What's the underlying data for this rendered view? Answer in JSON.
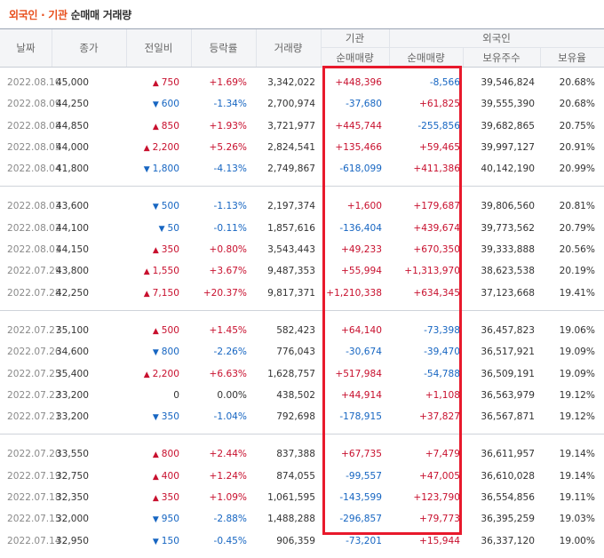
{
  "title": {
    "part1": "외국인 · 기관",
    "part2": "순매매 거래량"
  },
  "headers": {
    "date": "날짜",
    "close": "종가",
    "change": "전일비",
    "rate": "등락률",
    "volume": "거래량",
    "institution": "기관",
    "inst_net": "순매매량",
    "foreign": "외국인",
    "for_net": "순매매량",
    "holdings": "보유주수",
    "hold_rate": "보유율"
  },
  "colors": {
    "up": "#c8102e",
    "down": "#1766c2",
    "highlight_box": "#e8192c",
    "title_accent": "#e8501e"
  },
  "groups": [
    {
      "rows": [
        {
          "date": "2022.08.10",
          "close": "45,000",
          "dir": "up",
          "change": "750",
          "rate": "+1.69%",
          "volume": "3,342,022",
          "inst": "+448,396",
          "foreign": "-8,566",
          "holdings": "39,546,824",
          "hold_rate": "20.68%"
        },
        {
          "date": "2022.08.09",
          "close": "44,250",
          "dir": "down",
          "change": "600",
          "rate": "-1.34%",
          "volume": "2,700,974",
          "inst": "-37,680",
          "foreign": "+61,825",
          "holdings": "39,555,390",
          "hold_rate": "20.68%"
        },
        {
          "date": "2022.08.08",
          "close": "44,850",
          "dir": "up",
          "change": "850",
          "rate": "+1.93%",
          "volume": "3,721,977",
          "inst": "+445,744",
          "foreign": "-255,856",
          "holdings": "39,682,865",
          "hold_rate": "20.75%"
        },
        {
          "date": "2022.08.05",
          "close": "44,000",
          "dir": "up",
          "change": "2,200",
          "rate": "+5.26%",
          "volume": "2,824,541",
          "inst": "+135,466",
          "foreign": "+59,465",
          "holdings": "39,997,127",
          "hold_rate": "20.91%"
        },
        {
          "date": "2022.08.04",
          "close": "41,800",
          "dir": "down",
          "change": "1,800",
          "rate": "-4.13%",
          "volume": "2,749,867",
          "inst": "-618,099",
          "foreign": "+411,386",
          "holdings": "40,142,190",
          "hold_rate": "20.99%"
        }
      ]
    },
    {
      "rows": [
        {
          "date": "2022.08.03",
          "close": "43,600",
          "dir": "down",
          "change": "500",
          "rate": "-1.13%",
          "volume": "2,197,374",
          "inst": "+1,600",
          "foreign": "+179,687",
          "holdings": "39,806,560",
          "hold_rate": "20.81%"
        },
        {
          "date": "2022.08.02",
          "close": "44,100",
          "dir": "down",
          "change": "50",
          "rate": "-0.11%",
          "volume": "1,857,616",
          "inst": "-136,404",
          "foreign": "+439,674",
          "holdings": "39,773,562",
          "hold_rate": "20.79%"
        },
        {
          "date": "2022.08.01",
          "close": "44,150",
          "dir": "up",
          "change": "350",
          "rate": "+0.80%",
          "volume": "3,543,443",
          "inst": "+49,233",
          "foreign": "+670,350",
          "holdings": "39,333,888",
          "hold_rate": "20.56%"
        },
        {
          "date": "2022.07.29",
          "close": "43,800",
          "dir": "up",
          "change": "1,550",
          "rate": "+3.67%",
          "volume": "9,487,353",
          "inst": "+55,994",
          "foreign": "+1,313,970",
          "holdings": "38,623,538",
          "hold_rate": "20.19%"
        },
        {
          "date": "2022.07.28",
          "close": "42,250",
          "dir": "up",
          "change": "7,150",
          "rate": "+20.37%",
          "volume": "9,817,371",
          "inst": "+1,210,338",
          "foreign": "+634,345",
          "holdings": "37,123,668",
          "hold_rate": "19.41%"
        }
      ]
    },
    {
      "rows": [
        {
          "date": "2022.07.27",
          "close": "35,100",
          "dir": "up",
          "change": "500",
          "rate": "+1.45%",
          "volume": "582,423",
          "inst": "+64,140",
          "foreign": "-73,398",
          "holdings": "36,457,823",
          "hold_rate": "19.06%"
        },
        {
          "date": "2022.07.26",
          "close": "34,600",
          "dir": "down",
          "change": "800",
          "rate": "-2.26%",
          "volume": "776,043",
          "inst": "-30,674",
          "foreign": "-39,470",
          "holdings": "36,517,921",
          "hold_rate": "19.09%"
        },
        {
          "date": "2022.07.25",
          "close": "35,400",
          "dir": "up",
          "change": "2,200",
          "rate": "+6.63%",
          "volume": "1,628,757",
          "inst": "+517,984",
          "foreign": "-54,788",
          "holdings": "36,509,191",
          "hold_rate": "19.09%"
        },
        {
          "date": "2022.07.22",
          "close": "33,200",
          "dir": "flat",
          "change": "0",
          "rate": "0.00%",
          "volume": "438,502",
          "inst": "+44,914",
          "foreign": "+1,108",
          "holdings": "36,563,979",
          "hold_rate": "19.12%"
        },
        {
          "date": "2022.07.21",
          "close": "33,200",
          "dir": "down",
          "change": "350",
          "rate": "-1.04%",
          "volume": "792,698",
          "inst": "-178,915",
          "foreign": "+37,827",
          "holdings": "36,567,871",
          "hold_rate": "19.12%"
        }
      ]
    },
    {
      "rows": [
        {
          "date": "2022.07.20",
          "close": "33,550",
          "dir": "up",
          "change": "800",
          "rate": "+2.44%",
          "volume": "837,388",
          "inst": "+67,735",
          "foreign": "+7,479",
          "holdings": "36,611,957",
          "hold_rate": "19.14%"
        },
        {
          "date": "2022.07.19",
          "close": "32,750",
          "dir": "up",
          "change": "400",
          "rate": "+1.24%",
          "volume": "874,055",
          "inst": "-99,557",
          "foreign": "+47,005",
          "holdings": "36,610,028",
          "hold_rate": "19.14%"
        },
        {
          "date": "2022.07.18",
          "close": "32,350",
          "dir": "up",
          "change": "350",
          "rate": "+1.09%",
          "volume": "1,061,595",
          "inst": "-143,599",
          "foreign": "+123,790",
          "holdings": "36,554,856",
          "hold_rate": "19.11%"
        },
        {
          "date": "2022.07.15",
          "close": "32,000",
          "dir": "down",
          "change": "950",
          "rate": "-2.88%",
          "volume": "1,488,288",
          "inst": "-296,857",
          "foreign": "+79,773",
          "holdings": "36,395,259",
          "hold_rate": "19.03%"
        },
        {
          "date": "2022.07.14",
          "close": "32,950",
          "dir": "down",
          "change": "150",
          "rate": "-0.45%",
          "volume": "906,359",
          "inst": "-73,201",
          "foreign": "+15,944",
          "holdings": "36,337,120",
          "hold_rate": "19.00%"
        }
      ]
    }
  ]
}
